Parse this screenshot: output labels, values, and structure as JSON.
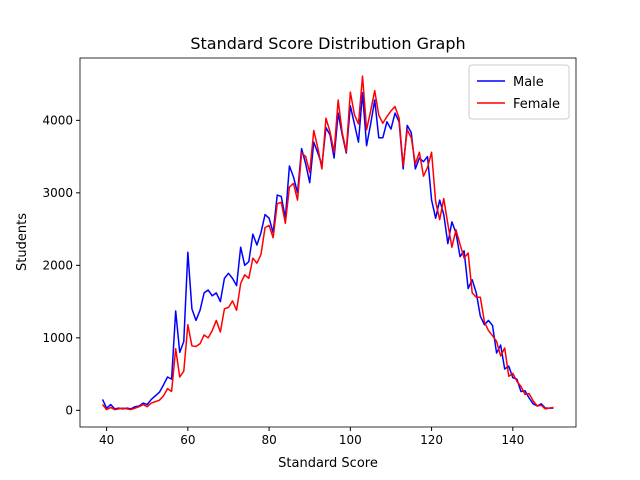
{
  "chart_data": {
    "type": "line",
    "title": "Standard Score Distribution Graph",
    "xlabel": "Standard Score",
    "ylabel": "Students",
    "x": [
      39,
      40,
      41,
      42,
      43,
      44,
      45,
      46,
      47,
      48,
      49,
      50,
      51,
      52,
      53,
      54,
      55,
      56,
      57,
      58,
      59,
      60,
      61,
      62,
      63,
      64,
      65,
      66,
      67,
      68,
      69,
      70,
      71,
      72,
      73,
      74,
      75,
      76,
      77,
      78,
      79,
      80,
      81,
      82,
      83,
      84,
      85,
      86,
      87,
      88,
      89,
      90,
      91,
      92,
      93,
      94,
      95,
      96,
      97,
      98,
      99,
      100,
      101,
      102,
      103,
      104,
      105,
      106,
      107,
      108,
      109,
      110,
      111,
      112,
      113,
      114,
      115,
      116,
      117,
      118,
      119,
      120,
      121,
      122,
      123,
      124,
      125,
      126,
      127,
      128,
      129,
      130,
      131,
      132,
      133,
      134,
      135,
      136,
      137,
      138,
      139,
      140,
      141,
      142,
      143,
      144,
      145,
      146,
      147,
      148,
      149,
      150
    ],
    "series": [
      {
        "name": "Male",
        "color": "#0000ff",
        "values": [
          150,
          30,
          80,
          20,
          30,
          20,
          30,
          20,
          50,
          60,
          100,
          80,
          150,
          200,
          250,
          350,
          460,
          430,
          1370,
          800,
          950,
          2180,
          1400,
          1240,
          1380,
          1620,
          1660,
          1580,
          1620,
          1500,
          1820,
          1890,
          1820,
          1720,
          2250,
          2000,
          2050,
          2430,
          2280,
          2450,
          2700,
          2650,
          2450,
          2970,
          2950,
          2650,
          3370,
          3220,
          3000,
          3610,
          3400,
          3140,
          3700,
          3550,
          3380,
          3900,
          3800,
          3480,
          4100,
          3800,
          3550,
          4200,
          3950,
          3700,
          4380,
          3650,
          3950,
          4280,
          3760,
          3760,
          3980,
          3880,
          4100,
          3980,
          3330,
          3930,
          3830,
          3330,
          3480,
          3430,
          3500,
          2900,
          2650,
          2900,
          2700,
          2300,
          2600,
          2450,
          2120,
          2200,
          1680,
          1800,
          1620,
          1300,
          1180,
          1240,
          1170,
          790,
          900,
          570,
          610,
          450,
          430,
          260,
          270,
          170,
          90,
          60,
          90,
          30,
          30,
          30
        ]
      },
      {
        "name": "Female",
        "color": "#ff0000",
        "values": [
          80,
          10,
          40,
          10,
          20,
          30,
          20,
          10,
          30,
          50,
          80,
          50,
          100,
          120,
          140,
          200,
          300,
          260,
          850,
          460,
          540,
          1180,
          890,
          880,
          920,
          1040,
          1000,
          1100,
          1240,
          1080,
          1400,
          1420,
          1510,
          1380,
          1750,
          1870,
          1820,
          2100,
          2030,
          2150,
          2520,
          2550,
          2380,
          2850,
          2870,
          2580,
          3080,
          3130,
          2900,
          3550,
          3500,
          3280,
          3860,
          3620,
          3330,
          4030,
          3840,
          3560,
          4280,
          3830,
          3570,
          4390,
          4080,
          3950,
          4610,
          3870,
          4130,
          4410,
          4070,
          3960,
          4050,
          4130,
          4190,
          4030,
          3370,
          3870,
          3760,
          3400,
          3560,
          3230,
          3350,
          3560,
          2880,
          2630,
          2920,
          2570,
          2250,
          2490,
          2290,
          2100,
          2170,
          1620,
          1560,
          1560,
          1220,
          1100,
          1030,
          950,
          750,
          860,
          470,
          510,
          400,
          330,
          220,
          230,
          130,
          60,
          70,
          20,
          30,
          40
        ]
      }
    ],
    "xlim": [
      33.45,
      155.55
    ],
    "ylim": [
      -230,
      4860
    ],
    "xticks": [
      40,
      60,
      80,
      100,
      120,
      140
    ],
    "yticks": [
      0,
      1000,
      2000,
      3000,
      4000
    ],
    "legend": "upper right",
    "grid": false
  }
}
